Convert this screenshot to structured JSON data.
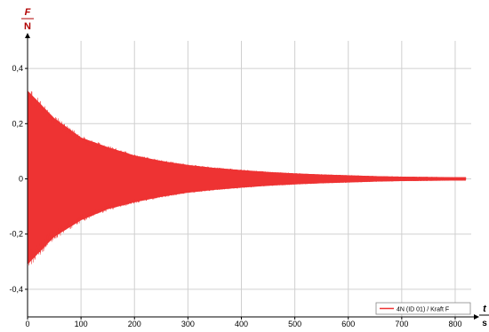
{
  "chart_data": {
    "type": "line",
    "y_axis": {
      "symbol": "F",
      "unit": "N",
      "range": [
        -0.5,
        0.5
      ],
      "ticks": [
        {
          "value": -0.4,
          "label": "-0,4"
        },
        {
          "value": -0.2,
          "label": "-0,2"
        },
        {
          "value": 0,
          "label": "0"
        },
        {
          "value": 0.2,
          "label": "0,2"
        },
        {
          "value": 0.4,
          "label": "0,4"
        }
      ]
    },
    "x_axis": {
      "symbol": "t",
      "unit": "s",
      "range": [
        0,
        830
      ],
      "ticks": [
        {
          "value": 0,
          "label": "0"
        },
        {
          "value": 100,
          "label": "100"
        },
        {
          "value": 200,
          "label": "200"
        },
        {
          "value": 300,
          "label": "300"
        },
        {
          "value": 400,
          "label": "400"
        },
        {
          "value": 500,
          "label": "500"
        },
        {
          "value": 600,
          "label": "600"
        },
        {
          "value": 700,
          "label": "700"
        },
        {
          "value": 800,
          "label": "800"
        }
      ]
    },
    "grid": true,
    "legend_position": "bottom-right",
    "series": [
      {
        "name": "4N (ID 01) / Kraft F",
        "color": "#ee3333",
        "envelope": {
          "t": [
            0,
            20,
            50,
            100,
            150,
            200,
            250,
            300,
            350,
            400,
            450,
            500,
            550,
            600,
            650,
            700,
            750,
            800,
            820
          ],
          "upper": [
            0.32,
            0.28,
            0.22,
            0.15,
            0.115,
            0.085,
            0.065,
            0.05,
            0.04,
            0.032,
            0.025,
            0.02,
            0.016,
            0.013,
            0.01,
            0.008,
            0.007,
            0.006,
            0.006
          ],
          "lower": [
            -0.31,
            -0.27,
            -0.21,
            -0.15,
            -0.11,
            -0.085,
            -0.065,
            -0.05,
            -0.04,
            -0.032,
            -0.025,
            -0.02,
            -0.016,
            -0.013,
            -0.01,
            -0.008,
            -0.007,
            -0.006,
            -0.006
          ]
        }
      }
    ]
  }
}
